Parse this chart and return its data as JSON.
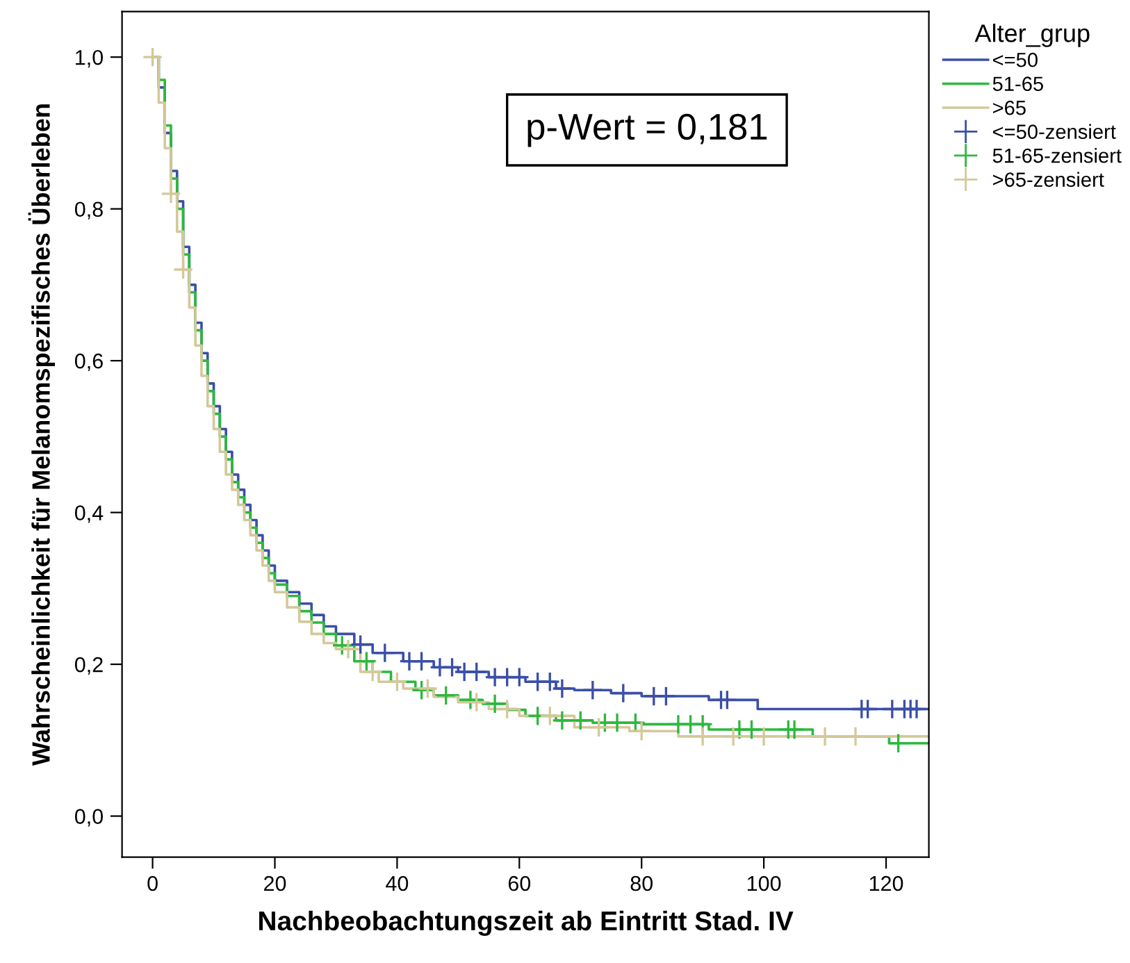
{
  "chart_data": {
    "type": "step",
    "xlabel": "Nachbeobachtungszeit ab Eintritt Stad. IV",
    "ylabel": "Wahrscheinlichkeit für Melanomspezifisches Überleben",
    "legend_title": "Alter_grup",
    "legend": "right",
    "grid": false,
    "annotations": [
      "p-Wert = 0,181"
    ],
    "xlim": [
      -5,
      127
    ],
    "xticks": [
      0,
      20,
      40,
      60,
      80,
      100,
      120
    ],
    "ylim": [
      -0.054,
      1.06
    ],
    "yticks": [
      {
        "value": 0,
        "label": "0,0"
      },
      {
        "value": 0.2,
        "label": "0,2"
      },
      {
        "value": 0.4,
        "label": "0,4"
      },
      {
        "value": 0.6,
        "label": "0,6"
      },
      {
        "value": 0.8,
        "label": "0,8"
      },
      {
        "value": 1.0,
        "label": "1,0"
      }
    ],
    "series": [
      {
        "name": "<=50",
        "color": "#3b4fa8",
        "x": [
          0,
          1,
          2,
          3,
          4,
          5,
          6,
          7,
          8,
          9,
          10,
          11,
          12,
          13,
          14,
          15,
          16,
          17,
          18,
          19,
          20,
          22,
          24,
          26,
          28,
          30,
          33,
          36,
          41,
          46,
          50,
          55,
          61,
          66,
          69,
          75,
          80,
          91,
          99,
          127
        ],
        "values": [
          1.0,
          0.96,
          0.9,
          0.85,
          0.81,
          0.75,
          0.7,
          0.65,
          0.61,
          0.57,
          0.54,
          0.51,
          0.48,
          0.45,
          0.43,
          0.41,
          0.39,
          0.37,
          0.35,
          0.33,
          0.31,
          0.295,
          0.28,
          0.265,
          0.25,
          0.24,
          0.226,
          0.215,
          0.204,
          0.196,
          0.19,
          0.183,
          0.177,
          0.168,
          0.166,
          0.162,
          0.158,
          0.153,
          0.141,
          0.141
        ]
      },
      {
        "name": "51-65",
        "color": "#2db83d",
        "x": [
          0,
          1,
          2,
          3,
          4,
          5,
          6,
          7,
          8,
          9,
          10,
          11,
          12,
          13,
          14,
          15,
          16,
          17,
          18,
          19,
          20,
          22,
          24,
          26,
          28,
          30,
          33,
          36,
          39,
          43,
          46,
          50,
          54,
          58,
          61,
          66,
          72,
          80,
          91,
          108,
          120.5,
          127
        ],
        "values": [
          1.0,
          0.97,
          0.91,
          0.84,
          0.8,
          0.74,
          0.69,
          0.64,
          0.6,
          0.56,
          0.53,
          0.5,
          0.47,
          0.44,
          0.42,
          0.4,
          0.38,
          0.36,
          0.34,
          0.32,
          0.305,
          0.29,
          0.27,
          0.255,
          0.24,
          0.225,
          0.204,
          0.19,
          0.177,
          0.166,
          0.159,
          0.153,
          0.148,
          0.14,
          0.132,
          0.126,
          0.123,
          0.121,
          0.114,
          0.105,
          0.096,
          0.096
        ]
      },
      {
        "name": ">65",
        "color": "#d4c89a",
        "x": [
          0,
          1,
          2,
          3,
          4,
          5,
          6,
          7,
          8,
          9,
          10,
          11,
          12,
          13,
          14,
          15,
          16,
          17,
          18,
          19,
          20,
          22,
          24,
          26,
          28,
          30,
          34,
          37,
          41,
          46,
          50,
          55,
          60,
          69,
          78,
          86,
          127
        ],
        "values": [
          1.0,
          0.94,
          0.88,
          0.82,
          0.77,
          0.72,
          0.67,
          0.62,
          0.58,
          0.54,
          0.51,
          0.48,
          0.45,
          0.43,
          0.41,
          0.39,
          0.37,
          0.35,
          0.33,
          0.31,
          0.295,
          0.275,
          0.256,
          0.24,
          0.228,
          0.22,
          0.19,
          0.177,
          0.168,
          0.157,
          0.15,
          0.141,
          0.132,
          0.117,
          0.112,
          0.105,
          0.105
        ]
      },
      {
        "name": "<=50-zensiert",
        "type": "scatter",
        "marker": "cross",
        "color": "#3b4fa8",
        "x": [
          34,
          38,
          42,
          44,
          47,
          49,
          51,
          53,
          56,
          58,
          60,
          63,
          65,
          67,
          72,
          77,
          82,
          84,
          93,
          94,
          116,
          117,
          121,
          123,
          124,
          125
        ],
        "values": [
          0.226,
          0.215,
          0.204,
          0.204,
          0.196,
          0.196,
          0.19,
          0.19,
          0.183,
          0.183,
          0.183,
          0.177,
          0.177,
          0.168,
          0.166,
          0.162,
          0.158,
          0.158,
          0.153,
          0.153,
          0.141,
          0.141,
          0.141,
          0.141,
          0.141,
          0.141
        ]
      },
      {
        "name": "51-65-zensiert",
        "type": "scatter",
        "marker": "cross",
        "color": "#2db83d",
        "x": [
          31,
          35,
          44,
          48,
          52,
          56,
          63,
          67,
          70,
          74,
          76,
          79,
          86,
          88,
          90,
          96,
          98,
          104,
          105,
          122
        ],
        "values": [
          0.225,
          0.204,
          0.166,
          0.159,
          0.153,
          0.148,
          0.132,
          0.126,
          0.126,
          0.123,
          0.123,
          0.123,
          0.121,
          0.121,
          0.121,
          0.114,
          0.114,
          0.114,
          0.114,
          0.096
        ]
      },
      {
        "name": ">65-zensiert",
        "type": "scatter",
        "marker": "cross",
        "color": "#d4c89a",
        "x": [
          0,
          3,
          5,
          32,
          36,
          40,
          45,
          53,
          58,
          65,
          73,
          80,
          90,
          95,
          100,
          110,
          115
        ],
        "values": [
          1.0,
          0.82,
          0.72,
          0.22,
          0.19,
          0.177,
          0.168,
          0.15,
          0.141,
          0.132,
          0.117,
          0.112,
          0.105,
          0.105,
          0.105,
          0.105,
          0.105
        ]
      }
    ]
  }
}
